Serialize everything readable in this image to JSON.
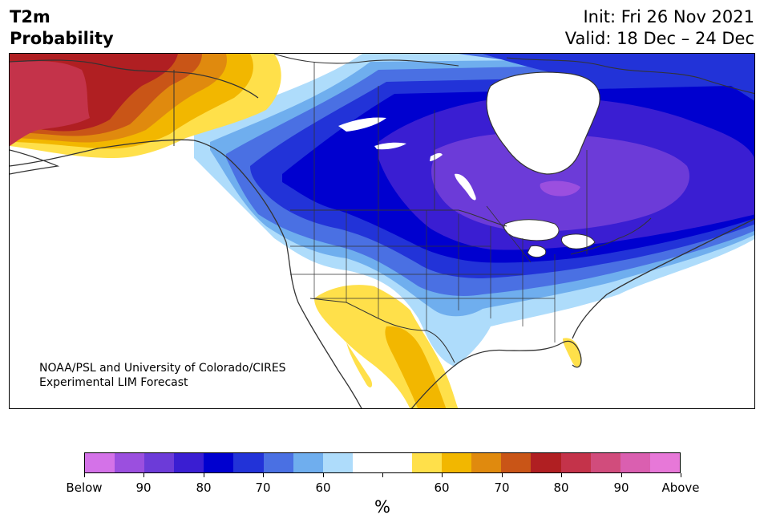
{
  "header": {
    "title_line1": "T2m",
    "title_line2": "Probability",
    "init_text": "Init: Fri 26 Nov 2021",
    "valid_text": "Valid: 18 Dec – 24 Dec"
  },
  "credit": {
    "line1": "NOAA/PSL and University of Colorado/CIRES",
    "line2": "Experimental LIM Forecast"
  },
  "colorbar": {
    "colors": [
      "#d472e8",
      "#9b4fdf",
      "#6c3bd8",
      "#3a1ed2",
      "#0000cf",
      "#2233d8",
      "#4a70e3",
      "#6faeee",
      "#aedcfb",
      "#ffffff",
      "#ffffff",
      "#ffe04a",
      "#f2b700",
      "#e08a0e",
      "#c95517",
      "#b01f22",
      "#c4334a",
      "#d14c7c",
      "#da5fb0",
      "#e778d8"
    ],
    "tick_labels": [
      "Below",
      "90",
      "80",
      "70",
      "60",
      "",
      "60",
      "70",
      "80",
      "90",
      "Above"
    ],
    "unit": "%"
  },
  "map": {
    "palette": {
      "land": "#ffffff",
      "water": "#ffffff",
      "coast": "#333333",
      "below_60": "#aedcfb",
      "below_70": "#6faeee",
      "below_75": "#4a70e3",
      "below_80": "#2233d8",
      "below_85": "#0000cf",
      "below_90": "#3a1ed2",
      "below_95": "#6c3bd8",
      "below_max": "#9b4fdf",
      "above_60": "#ffe04a",
      "above_70": "#f2b700",
      "above_75": "#e08a0e",
      "above_80": "#c95517",
      "above_85": "#b01f22",
      "above_90": "#c4334a"
    }
  }
}
